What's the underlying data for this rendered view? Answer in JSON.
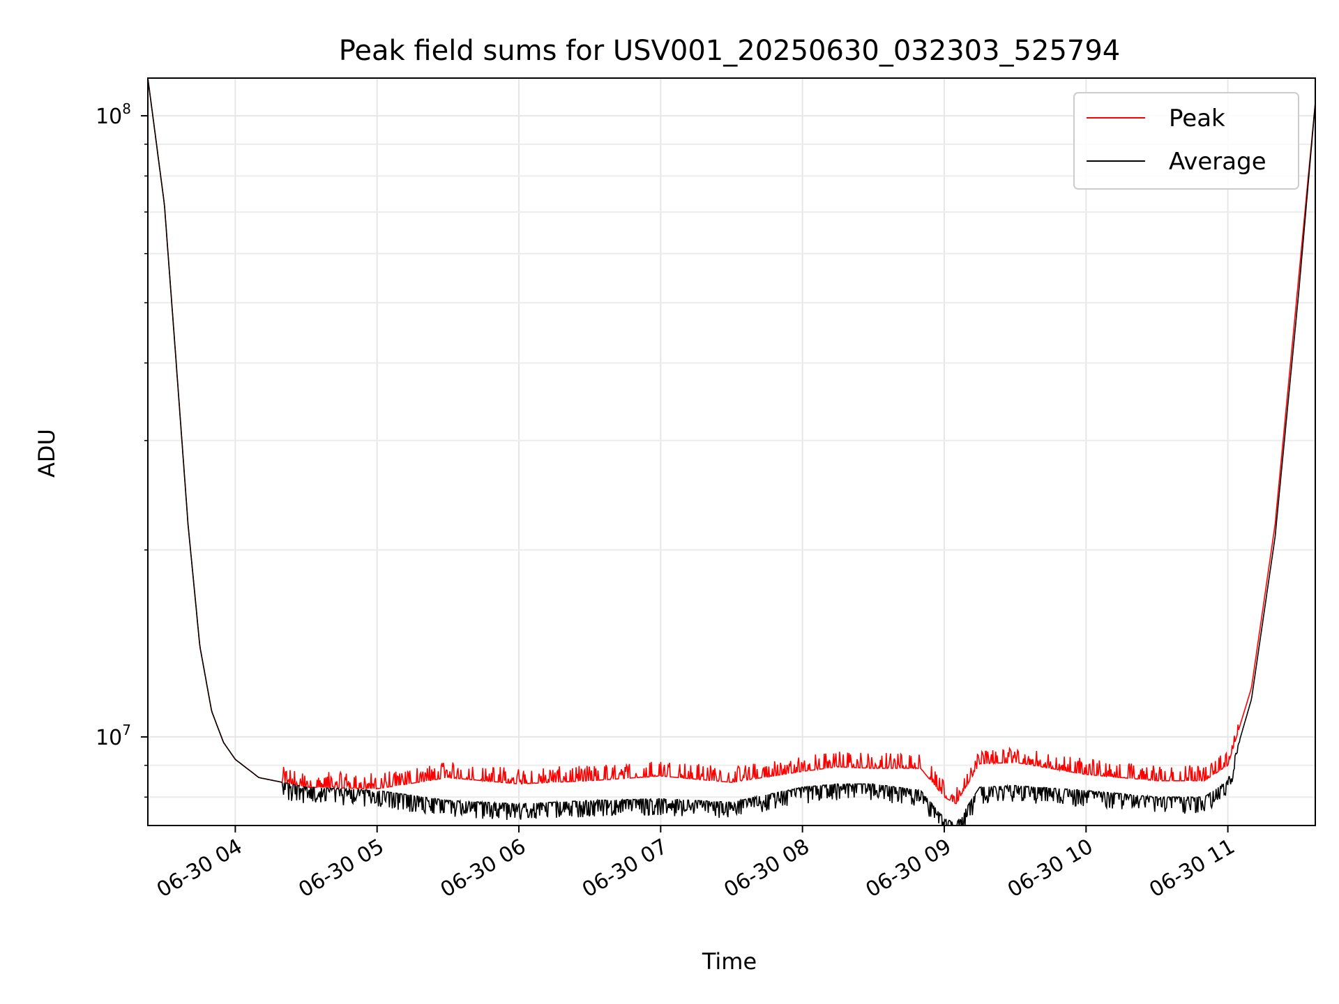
{
  "chart_data": {
    "type": "line",
    "title": "Peak field sums for USV001_20250630_032303_525794",
    "xlabel": "Time",
    "ylabel": "ADU",
    "yscale": "log",
    "xlim": [
      "2025-06-30 03:23",
      "2025-06-30 11:37"
    ],
    "ylim": [
      7200000,
      115000000
    ],
    "grid": true,
    "legend": "top-right",
    "x_ticks": [
      "06-30 04",
      "06-30 05",
      "06-30 06",
      "06-30 07",
      "06-30 08",
      "06-30 09",
      "06-30 10",
      "06-30 11"
    ],
    "y_ticks": [
      {
        "value": 10000000,
        "base": "10",
        "exp": "7"
      },
      {
        "value": 100000000,
        "base": "10",
        "exp": "8"
      }
    ],
    "series": [
      {
        "name": "Peak",
        "color": "#ff0000",
        "x": [
          "2025-06-30 03:23",
          "2025-06-30 03:30",
          "2025-06-30 03:35",
          "2025-06-30 03:40",
          "2025-06-30 03:45",
          "2025-06-30 03:50",
          "2025-06-30 03:55",
          "2025-06-30 04:00",
          "2025-06-30 04:10",
          "2025-06-30 04:30",
          "2025-06-30 05:00",
          "2025-06-30 05:30",
          "2025-06-30 06:00",
          "2025-06-30 06:30",
          "2025-06-30 07:00",
          "2025-06-30 07:30",
          "2025-06-30 08:00",
          "2025-06-30 08:15",
          "2025-06-30 08:30",
          "2025-06-30 08:50",
          "2025-06-30 09:00",
          "2025-06-30 09:05",
          "2025-06-30 09:15",
          "2025-06-30 09:30",
          "2025-06-30 10:00",
          "2025-06-30 10:30",
          "2025-06-30 10:50",
          "2025-06-30 11:00",
          "2025-06-30 11:10",
          "2025-06-30 11:20",
          "2025-06-30 11:30",
          "2025-06-30 11:37"
        ],
        "y": [
          115000000,
          72000000,
          40000000,
          22000000,
          14000000,
          11000000,
          9800000,
          9200000,
          8600000,
          8300000,
          8250000,
          8600000,
          8400000,
          8500000,
          8650000,
          8450000,
          8800000,
          8950000,
          8900000,
          8900000,
          8000000,
          7800000,
          9050000,
          9100000,
          8700000,
          8500000,
          8500000,
          9000000,
          12000000,
          22000000,
          55000000,
          105000000
        ]
      },
      {
        "name": "Average",
        "color": "#000000",
        "x": [
          "2025-06-30 03:23",
          "2025-06-30 03:30",
          "2025-06-30 03:35",
          "2025-06-30 03:40",
          "2025-06-30 03:45",
          "2025-06-30 03:50",
          "2025-06-30 03:55",
          "2025-06-30 04:00",
          "2025-06-30 04:10",
          "2025-06-30 04:30",
          "2025-06-30 05:00",
          "2025-06-30 05:30",
          "2025-06-30 06:00",
          "2025-06-30 06:30",
          "2025-06-30 07:00",
          "2025-06-30 07:30",
          "2025-06-30 08:00",
          "2025-06-30 08:15",
          "2025-06-30 08:30",
          "2025-06-30 08:50",
          "2025-06-30 09:00",
          "2025-06-30 09:05",
          "2025-06-30 09:15",
          "2025-06-30 09:30",
          "2025-06-30 10:00",
          "2025-06-30 10:30",
          "2025-06-30 10:50",
          "2025-06-30 11:00",
          "2025-06-30 11:10",
          "2025-06-30 11:20",
          "2025-06-30 11:30",
          "2025-06-30 11:37"
        ],
        "y": [
          115000000,
          72000000,
          40000000,
          22000000,
          14000000,
          11000000,
          9800000,
          9200000,
          8600000,
          8300000,
          8200000,
          7900000,
          7800000,
          7900000,
          7950000,
          7850000,
          8300000,
          8400000,
          8400000,
          8200000,
          7400000,
          7250000,
          8300000,
          8350000,
          8200000,
          8000000,
          8000000,
          8500000,
          11500000,
          21000000,
          52000000,
          105000000
        ]
      }
    ]
  }
}
